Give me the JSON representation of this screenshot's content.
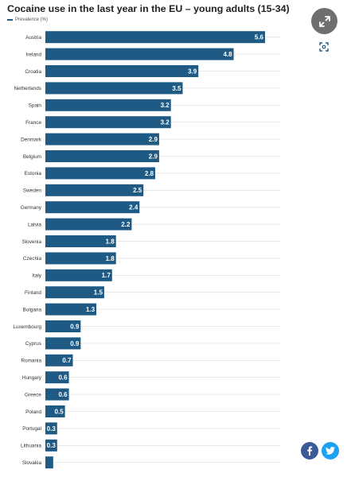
{
  "chart_data": {
    "type": "bar",
    "orientation": "horizontal",
    "title": "Cocaine use in the last year in the EU – young adults (15-34)",
    "legend": "Prevalence (%)",
    "color": "#1f5a85",
    "xlim": [
      0,
      6
    ],
    "grid": true,
    "categories": [
      "Austria",
      "Ireland",
      "Croatia",
      "Netherlands",
      "Spain",
      "France",
      "Denmark",
      "Belgium",
      "Estonia",
      "Sweden",
      "Germany",
      "Latvia",
      "Slovenia",
      "Czechia",
      "Italy",
      "Finland",
      "Bulgaria",
      "Luxembourg",
      "Cyprus",
      "Romania",
      "Hungary",
      "Greece",
      "Poland",
      "Portugal",
      "Lithuania",
      "Slovakia"
    ],
    "values": [
      5.6,
      4.8,
      3.9,
      3.5,
      3.2,
      3.2,
      2.9,
      2.9,
      2.8,
      2.5,
      2.4,
      2.2,
      1.8,
      1.8,
      1.7,
      1.5,
      1.3,
      0.9,
      0.9,
      0.7,
      0.6,
      0.6,
      0.5,
      0.3,
      0.3,
      0.2
    ],
    "value_labels": [
      "5.6",
      "4.8",
      "3.9",
      "3.5",
      "3.2",
      "3.2",
      "2.9",
      "2.9",
      "2.8",
      "2.5",
      "2.4",
      "2.2",
      "1.8",
      "1.8",
      "1.7",
      "1.5",
      "1.3",
      "0.9",
      "0.9",
      "0.7",
      "0.6",
      "0.6",
      "0.5",
      "0.3",
      "0.3",
      ""
    ]
  },
  "buttons": {
    "expand_icon": "expand-arrows-icon",
    "focus_icon": "focus-frame-icon",
    "facebook_icon": "facebook-icon",
    "twitter_icon": "twitter-bird-icon",
    "facebook_color": "#3b5a98",
    "twitter_color": "#1da1f2"
  }
}
